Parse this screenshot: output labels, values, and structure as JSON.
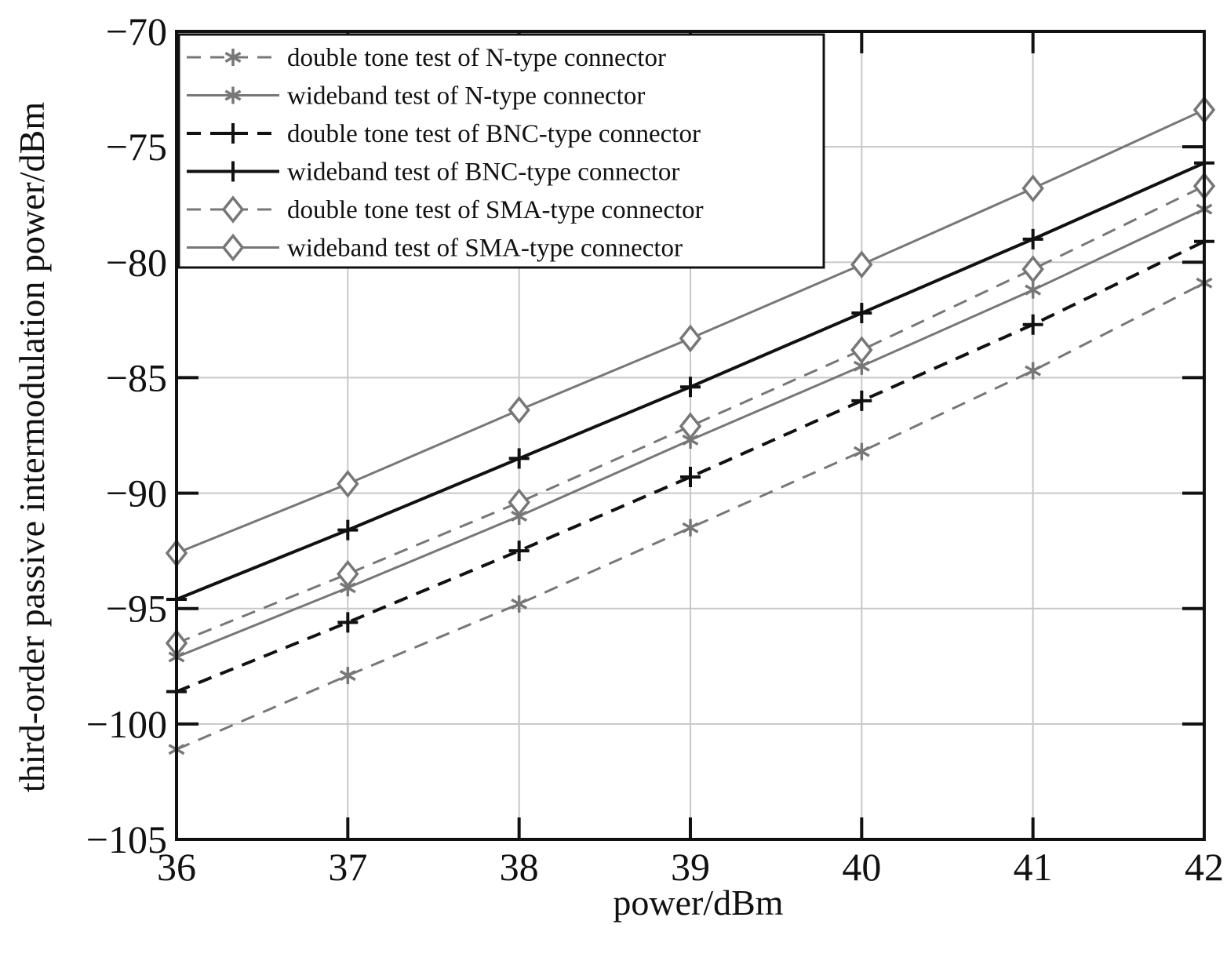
{
  "chart_data": {
    "type": "line",
    "xlabel": "power/dBm",
    "ylabel": "third-order passive intermodulation power/dBm",
    "x": [
      36,
      37,
      38,
      39,
      40,
      41,
      42
    ],
    "xlim": [
      36,
      42
    ],
    "ylim": [
      -105,
      -70
    ],
    "xticks": [
      "36",
      "37",
      "38",
      "39",
      "40",
      "41",
      "42"
    ],
    "yticks": [
      "−70",
      "−75",
      "−80",
      "−85",
      "−90",
      "−95",
      "−100",
      "−105"
    ],
    "grid": true,
    "legend_position": "top-left",
    "series": [
      {
        "name": "double tone test of N-type connector",
        "values": [
          -101.1,
          -97.9,
          -94.8,
          -91.5,
          -88.2,
          -84.7,
          -80.9
        ],
        "color": "#777777",
        "dash": "dashed",
        "marker": "asterisk"
      },
      {
        "name": "wideband test of N-type connector",
        "values": [
          -97.1,
          -94.1,
          -91.0,
          -87.7,
          -84.5,
          -81.2,
          -77.7
        ],
        "color": "#777777",
        "dash": "solid",
        "marker": "asterisk"
      },
      {
        "name": "double tone test of BNC-type connector",
        "values": [
          -98.6,
          -95.6,
          -92.5,
          -89.3,
          -86.0,
          -82.7,
          -79.1
        ],
        "color": "#111111",
        "dash": "dashed",
        "marker": "plus"
      },
      {
        "name": "wideband test of BNC-type connector",
        "values": [
          -94.6,
          -91.6,
          -88.5,
          -85.4,
          -82.2,
          -79.0,
          -75.7
        ],
        "color": "#111111",
        "dash": "solid",
        "marker": "plus"
      },
      {
        "name": "double tone test of SMA-type connector",
        "values": [
          -96.5,
          -93.5,
          -90.4,
          -87.1,
          -83.8,
          -80.3,
          -76.7
        ],
        "color": "#777777",
        "dash": "dashed",
        "marker": "diamond"
      },
      {
        "name": "wideband test of SMA-type connector",
        "values": [
          -92.6,
          -89.6,
          -86.4,
          -83.3,
          -80.1,
          -76.8,
          -73.4
        ],
        "color": "#777777",
        "dash": "solid",
        "marker": "diamond"
      }
    ]
  }
}
